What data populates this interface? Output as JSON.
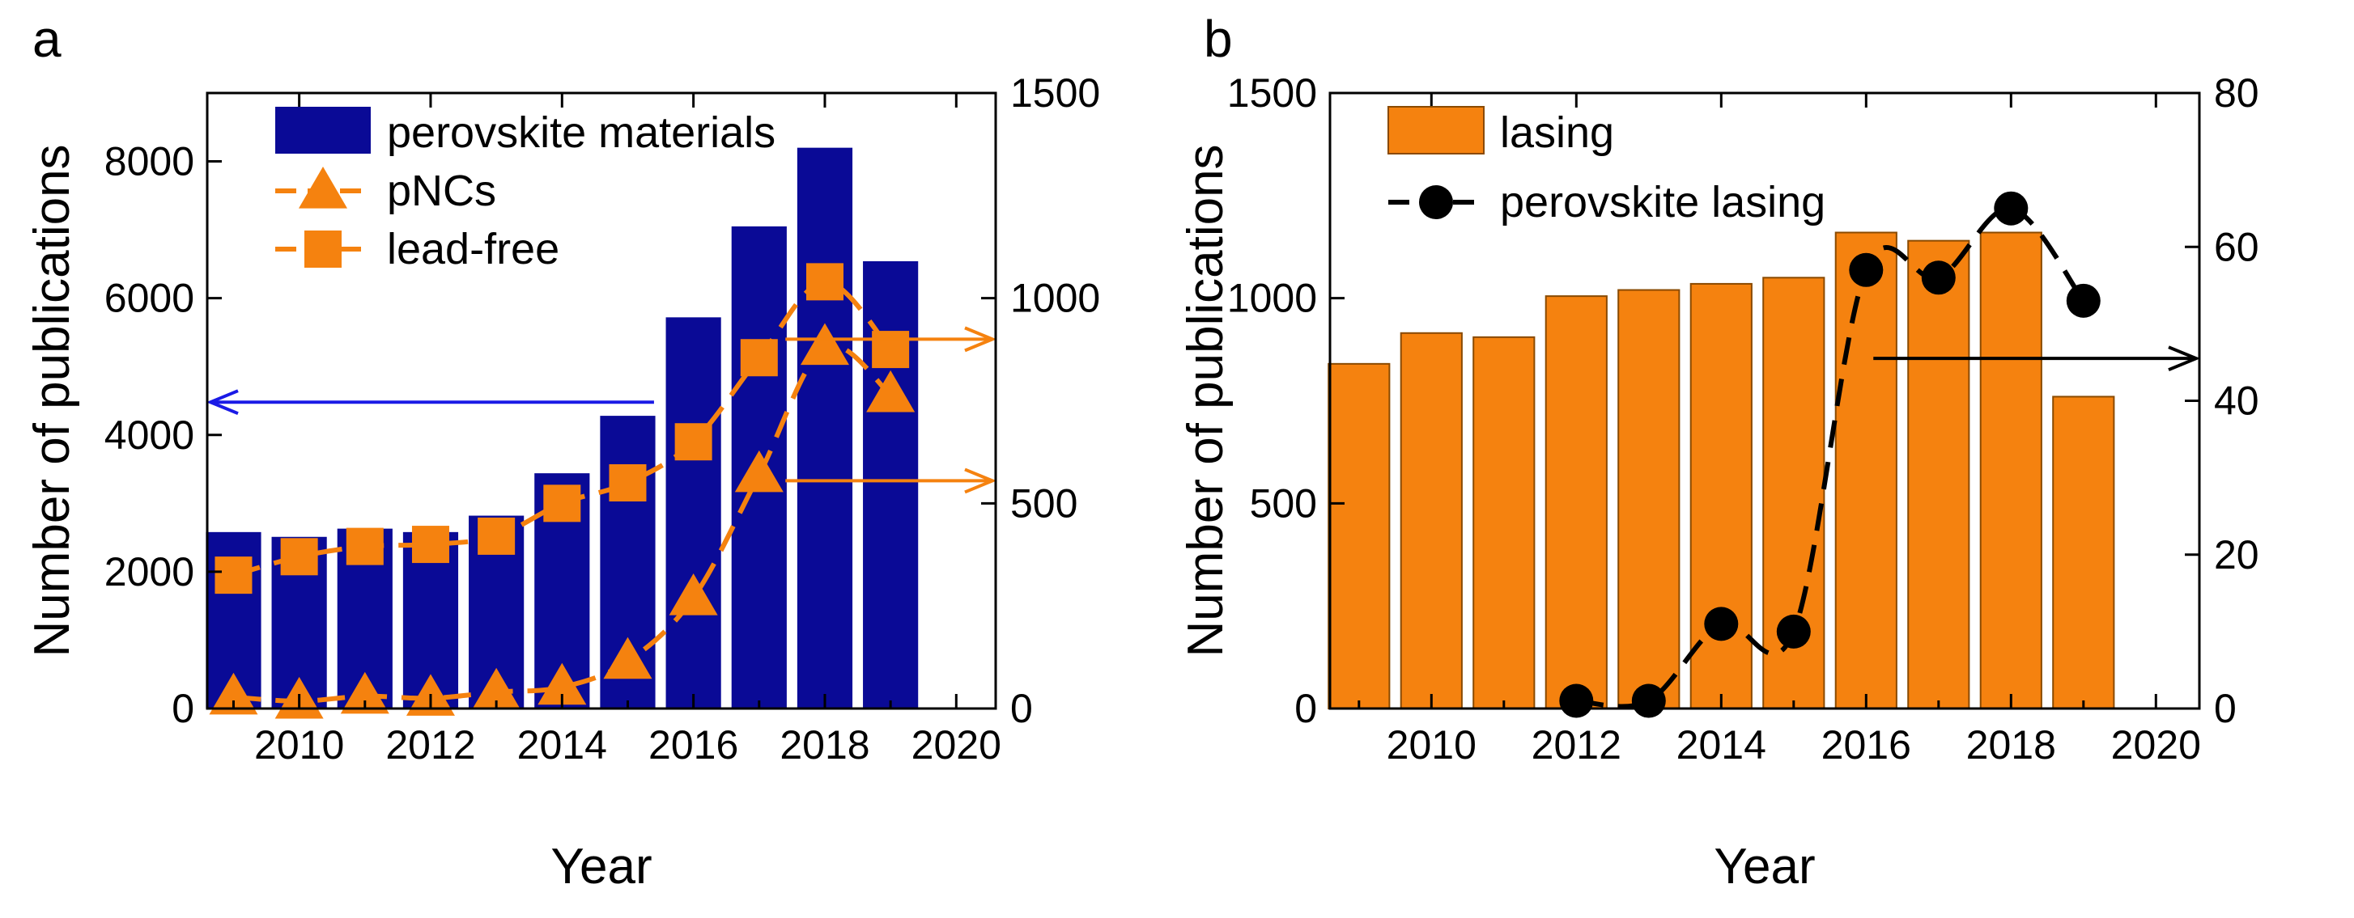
{
  "chart_data": [
    {
      "panel_label": "a",
      "type": "bar",
      "xlabel": "Year",
      "ylabel": "Number of publications",
      "xlim": [
        2008.6,
        2020.6
      ],
      "x_ticks": [
        "2010",
        "2012",
        "2014",
        "2016",
        "2018",
        "2020"
      ],
      "left_axis": {
        "lim": [
          0,
          9000
        ],
        "ticks": [
          "0",
          "2000",
          "4000",
          "6000",
          "8000"
        ]
      },
      "right_axis": {
        "lim": [
          0,
          1500
        ],
        "ticks": [
          "0",
          "500",
          "1000",
          "1500"
        ]
      },
      "bar_series": {
        "name": "perovskite materials",
        "axis": "left",
        "color": "#0a0a96",
        "x": [
          2009,
          2010,
          2011,
          2012,
          2013,
          2014,
          2015,
          2016,
          2017,
          2018,
          2019
        ],
        "values": [
          2580,
          2510,
          2630,
          2580,
          2820,
          3440,
          4280,
          5720,
          7050,
          8200,
          6540
        ]
      },
      "line_series": [
        {
          "name": "pNCs",
          "axis": "right",
          "marker": "triangle",
          "color": "#f5820f",
          "x": [
            2009,
            2010,
            2011,
            2012,
            2013,
            2014,
            2015,
            2016,
            2017,
            2018,
            2019
          ],
          "values": [
            28,
            18,
            30,
            25,
            40,
            52,
            115,
            270,
            570,
            880,
            765
          ]
        },
        {
          "name": "lead-free",
          "axis": "right",
          "marker": "square",
          "color": "#f5820f",
          "x": [
            2009,
            2010,
            2011,
            2012,
            2013,
            2014,
            2015,
            2016,
            2017,
            2018,
            2019
          ],
          "values": [
            325,
            370,
            395,
            400,
            420,
            500,
            550,
            650,
            855,
            1040,
            875
          ]
        }
      ],
      "arrows": [
        {
          "from_x": 2015.4,
          "y": 4480,
          "axis": "left",
          "direction": "left",
          "color": "#1a1ae6"
        },
        {
          "from_x": 2017.4,
          "y": 900,
          "axis": "right",
          "direction": "right",
          "color": "#f5820f"
        },
        {
          "from_x": 2017.4,
          "y": 555,
          "axis": "right",
          "direction": "right",
          "color": "#f5820f"
        }
      ]
    },
    {
      "panel_label": "b",
      "type": "bar",
      "xlabel": "Year",
      "ylabel": "Number of publications",
      "xlim": [
        2008.6,
        2020.6
      ],
      "x_ticks": [
        "2010",
        "2012",
        "2014",
        "2016",
        "2018",
        "2020"
      ],
      "left_axis": {
        "lim": [
          0,
          1500
        ],
        "ticks": [
          "0",
          "500",
          "1000",
          "1500"
        ]
      },
      "right_axis": {
        "lim": [
          0,
          80
        ],
        "ticks": [
          "0",
          "20",
          "40",
          "60",
          "80"
        ]
      },
      "bar_series": {
        "name": "lasing",
        "axis": "left",
        "color": "#f5820f",
        "x": [
          2009,
          2010,
          2011,
          2012,
          2013,
          2014,
          2015,
          2016,
          2017,
          2018,
          2019
        ],
        "values": [
          840,
          915,
          905,
          1005,
          1020,
          1035,
          1050,
          1160,
          1140,
          1160,
          760
        ]
      },
      "line_series": [
        {
          "name": "perovskite lasing",
          "axis": "right",
          "marker": "circle",
          "color": "#000000",
          "x": [
            2012,
            2013,
            2014,
            2015,
            2016,
            2017,
            2018,
            2019
          ],
          "values": [
            1,
            1,
            11,
            10,
            57,
            56,
            65,
            53
          ]
        }
      ],
      "arrows": [
        {
          "from_x": 2016.1,
          "y": 45.5,
          "axis": "right",
          "direction": "right",
          "color": "#000000"
        }
      ]
    }
  ]
}
